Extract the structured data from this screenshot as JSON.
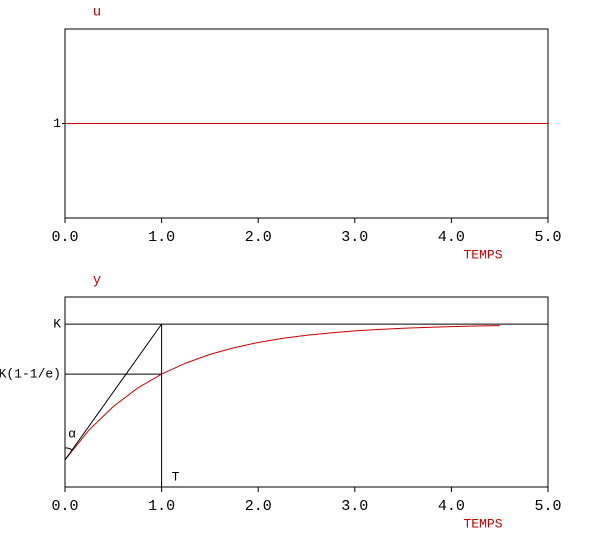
{
  "chart_data": [
    {
      "type": "line",
      "title": "u",
      "x_label": "TEMPS",
      "xlim": [
        0,
        5
      ],
      "ylim": [
        0,
        2
      ],
      "xticks": [
        {
          "value": 0,
          "label": "0.0"
        },
        {
          "value": 1,
          "label": "1.0"
        },
        {
          "value": 2,
          "label": "2.0"
        },
        {
          "value": 3,
          "label": "3.0"
        },
        {
          "value": 4,
          "label": "4.0"
        },
        {
          "value": 5,
          "label": "5.0"
        }
      ],
      "yticks": [
        1
      ],
      "series": [
        {
          "color": "#cc0000",
          "x": [
            0,
            5
          ],
          "values": [
            1,
            1
          ]
        }
      ]
    },
    {
      "type": "line",
      "title": "y",
      "x_label": "TEMPS",
      "xlim": [
        0,
        5
      ],
      "ylim": [
        -0.2,
        1.2
      ],
      "xticks": [
        {
          "value": 0,
          "label": "0.0"
        },
        {
          "value": 1,
          "label": "1.0"
        },
        {
          "value": 2,
          "label": "2.0"
        },
        {
          "value": 3,
          "label": "3.0"
        },
        {
          "value": 4,
          "label": "4.0"
        },
        {
          "value": 5,
          "label": "5.0"
        }
      ],
      "yticks": [
        {
          "value": 1,
          "label": "K"
        },
        {
          "value": 0.632,
          "label": "K(1-1/e)"
        }
      ],
      "time_constant": {
        "value": 1,
        "label": "T"
      },
      "angle_label": "α",
      "series": [
        {
          "color": "#cc0000",
          "x": [
            0,
            0.25,
            0.5,
            0.75,
            1,
            1.25,
            1.5,
            1.75,
            2,
            2.25,
            2.5,
            2.75,
            3,
            3.25,
            3.5,
            3.75,
            4,
            4.25,
            4.5
          ],
          "values": [
            0,
            0.221,
            0.393,
            0.528,
            0.632,
            0.713,
            0.777,
            0.826,
            0.865,
            0.895,
            0.918,
            0.936,
            0.95,
            0.961,
            0.97,
            0.976,
            0.982,
            0.986,
            0.989
          ]
        },
        {
          "color": "#000000",
          "x": [
            0,
            1
          ],
          "values": [
            0,
            1
          ]
        }
      ]
    }
  ]
}
